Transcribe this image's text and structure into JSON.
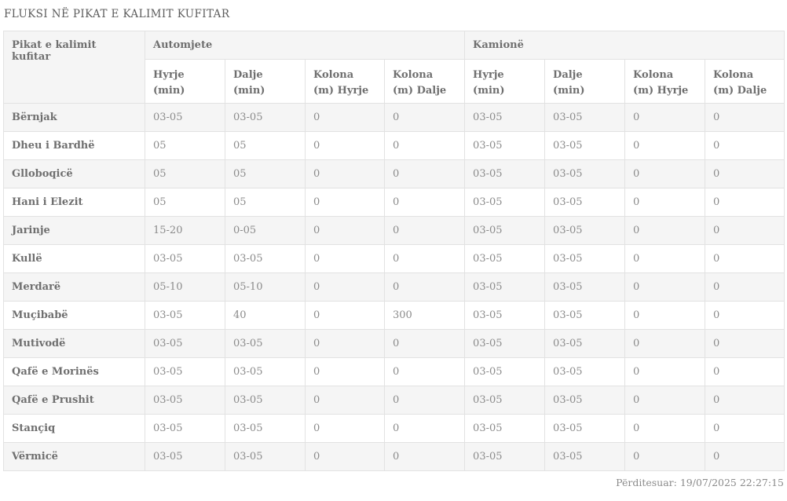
{
  "title": "FLUKSI NË PIKAT E KALIMIT KUFITAR",
  "table": {
    "row_header_label": "Pikat e kalimit kufitar",
    "groups": [
      {
        "label": "Automjete",
        "columns": [
          "Hyrje (min)",
          "Dalje (min)",
          "Kolona (m) Hyrje",
          "Kolona (m) Dalje"
        ]
      },
      {
        "label": "Kamionë",
        "columns": [
          "Hyrje (min)",
          "Dalje (min)",
          "Kolona (m) Hyrje",
          "Kolona (m) Dalje"
        ]
      }
    ],
    "rows": [
      {
        "name": "Bërnjak",
        "values": [
          "03-05",
          "03-05",
          "0",
          "0",
          "03-05",
          "03-05",
          "0",
          "0"
        ]
      },
      {
        "name": "Dheu i Bardhë",
        "values": [
          "05",
          "05",
          "0",
          "0",
          "03-05",
          "03-05",
          "0",
          "0"
        ]
      },
      {
        "name": "Glloboqicë",
        "values": [
          "05",
          "05",
          "0",
          "0",
          "03-05",
          "03-05",
          "0",
          "0"
        ]
      },
      {
        "name": "Hani i Elezit",
        "values": [
          "05",
          "05",
          "0",
          "0",
          "03-05",
          "03-05",
          "0",
          "0"
        ]
      },
      {
        "name": "Jarinje",
        "values": [
          "15-20",
          "0-05",
          "0",
          "0",
          "03-05",
          "03-05",
          "0",
          "0"
        ]
      },
      {
        "name": "Kullë",
        "values": [
          "03-05",
          "03-05",
          "0",
          "0",
          "03-05",
          "03-05",
          "0",
          "0"
        ]
      },
      {
        "name": "Merdarë",
        "values": [
          "05-10",
          "05-10",
          "0",
          "0",
          "03-05",
          "03-05",
          "0",
          "0"
        ]
      },
      {
        "name": "Muçibabë",
        "values": [
          "03-05",
          "40",
          "0",
          "300",
          "03-05",
          "03-05",
          "0",
          "0"
        ]
      },
      {
        "name": "Mutivodë",
        "values": [
          "03-05",
          "03-05",
          "0",
          "0",
          "03-05",
          "03-05",
          "0",
          "0"
        ]
      },
      {
        "name": "Qafë e Morinës",
        "values": [
          "03-05",
          "03-05",
          "0",
          "0",
          "03-05",
          "03-05",
          "0",
          "0"
        ]
      },
      {
        "name": "Qafë e Prushit",
        "values": [
          "03-05",
          "03-05",
          "0",
          "0",
          "03-05",
          "03-05",
          "0",
          "0"
        ]
      },
      {
        "name": "Stançiq",
        "values": [
          "03-05",
          "03-05",
          "0",
          "0",
          "03-05",
          "03-05",
          "0",
          "0"
        ]
      },
      {
        "name": "Vërmicë",
        "values": [
          "03-05",
          "03-05",
          "0",
          "0",
          "03-05",
          "03-05",
          "0",
          "0"
        ]
      }
    ]
  },
  "footer": {
    "updated": "Përditesuar: 19/07/2025 22:27:15"
  },
  "colors": {
    "stripe": "#f5f5f5",
    "border": "#e2e2e2",
    "text": "#8b8b8b",
    "heading_text": "#6f6f6f",
    "title_text": "#5d5d5d"
  }
}
